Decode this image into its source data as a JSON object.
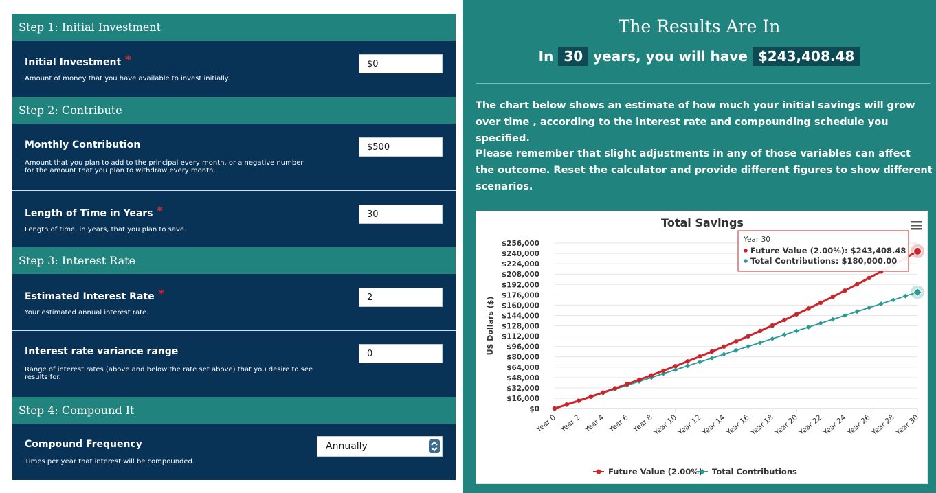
{
  "form": {
    "steps": [
      {
        "title": "Step 1: Initial Investment"
      },
      {
        "title": "Step 2: Contribute"
      },
      {
        "title": "Step 3: Interest Rate"
      },
      {
        "title": "Step 4: Compound It"
      }
    ],
    "initial_investment": {
      "label": "Initial Investment",
      "required_mark": "*",
      "description": "Amount of money that you have available to invest initially.",
      "value": "$0"
    },
    "monthly_contribution": {
      "label": "Monthly Contribution",
      "description": "Amount that you plan to add to the principal every month, or a negative number for the amount that you plan to withdraw every month.",
      "value": "$500"
    },
    "length_years": {
      "label": "Length of Time in Years",
      "required_mark": "*",
      "description": "Length of time, in years, that you plan to save.",
      "value": "30"
    },
    "interest_rate": {
      "label": "Estimated Interest Rate",
      "required_mark": "*",
      "description": "Your estimated annual interest rate.",
      "value": "2"
    },
    "variance_range": {
      "label": "Interest rate variance range",
      "description": "Range of interest rates (above and below the rate set above) that you desire to see results for.",
      "value": "0"
    },
    "compound_frequency": {
      "label": "Compound Frequency",
      "description": "Times per year that interest will be compounded.",
      "selected": "Annually",
      "arrow_icon": "updown-chevron-icon"
    }
  },
  "results": {
    "title": "The Results Are In",
    "sub_prefix": "In",
    "years": "30",
    "sub_middle": "years, you will have",
    "amount": "$243,408.48",
    "para1": "The chart below shows an estimate of how much your initial savings will grow over time , according to the interest rate and compounding schedule you specified.",
    "para2": "Please remember that slight adjustments in any of those variables can affect the outcome. Reset the calculator and provide different figures to show different scenarios."
  },
  "colors": {
    "future_value": "#c9252c",
    "contributions": "#2a9a94"
  },
  "chart_data": {
    "type": "line",
    "title": "Total Savings",
    "ylabel": "US Dollars ($)",
    "xlabel": "",
    "ylim": [
      0,
      256000
    ],
    "y_ticks": [
      "$0",
      "$16,000",
      "$32,000",
      "$48,000",
      "$64,000",
      "$80,000",
      "$96,000",
      "$112,000",
      "$128,000",
      "$144,000",
      "$160,000",
      "$176,000",
      "$192,000",
      "$208,000",
      "$224,000",
      "$240,000",
      "$256,000"
    ],
    "x_ticks": [
      "Year 0",
      "Year 2",
      "Year 4",
      "Year 6",
      "Year 8",
      "Year 10",
      "Year 12",
      "Year 14",
      "Year 16",
      "Year 18",
      "Year 20",
      "Year 22",
      "Year 24",
      "Year 26",
      "Year 28",
      "Year 30"
    ],
    "x": [
      0,
      1,
      2,
      3,
      4,
      5,
      6,
      7,
      8,
      9,
      10,
      11,
      12,
      13,
      14,
      15,
      16,
      17,
      18,
      19,
      20,
      21,
      22,
      23,
      24,
      25,
      26,
      27,
      28,
      29,
      30
    ],
    "series": [
      {
        "name": "Future Value (2.00%)",
        "values": [
          0,
          6000,
          12120,
          18362,
          24730,
          31224,
          37849,
          44606,
          51498,
          58528,
          65699,
          73013,
          80473,
          88083,
          95844,
          103761,
          111836,
          120073,
          128474,
          137044,
          145785,
          154700,
          163794,
          173070,
          182531,
          192182,
          202025,
          212066,
          222307,
          232753,
          243408
        ]
      },
      {
        "name": "Total Contributions",
        "values": [
          0,
          6000,
          12000,
          18000,
          24000,
          30000,
          36000,
          42000,
          48000,
          54000,
          60000,
          66000,
          72000,
          78000,
          84000,
          90000,
          96000,
          102000,
          108000,
          114000,
          120000,
          126000,
          132000,
          138000,
          144000,
          150000,
          156000,
          162000,
          168000,
          174000,
          180000
        ]
      }
    ],
    "tooltip": {
      "header": "Year 30",
      "line1": "Future Value (2.00%): $243,408.48",
      "line2": "Total Contributions: $180,000.00"
    },
    "menu_icon": "hamburger-menu-icon",
    "legend_position": "bottom",
    "grid": true
  }
}
